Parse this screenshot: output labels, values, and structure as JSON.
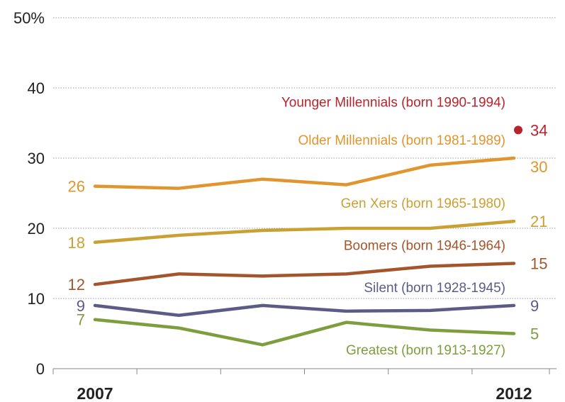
{
  "chart_data": {
    "type": "line",
    "title": "",
    "xlabel": "",
    "ylabel": "",
    "x": [
      2007,
      2008,
      2009,
      2010,
      2011,
      2012
    ],
    "x_tick_labels": [
      "2007",
      "2012"
    ],
    "y_tick_labels": [
      "0",
      "10",
      "20",
      "30",
      "40",
      "50%"
    ],
    "ylim": [
      0,
      50
    ],
    "grid": "horizontal dotted",
    "series": [
      {
        "name": "Older Millennials (born 1981-1989)",
        "color": "#e0952e",
        "values": [
          26,
          25.7,
          27,
          26.2,
          29,
          30
        ],
        "start_label": "26",
        "end_label": "30"
      },
      {
        "name": "Gen Xers (born 1965-1980)",
        "color": "#c9a133",
        "values": [
          18,
          19,
          19.7,
          20,
          20,
          21
        ],
        "start_label": "18",
        "end_label": "21"
      },
      {
        "name": "Boomers (born 1946-1964)",
        "color": "#a4552b",
        "values": [
          12,
          13.5,
          13.2,
          13.5,
          14.6,
          15
        ],
        "start_label": "12",
        "end_label": "15"
      },
      {
        "name": "Silent (born 1928-1945)",
        "color": "#5c5b86",
        "values": [
          9,
          7.6,
          9,
          8.2,
          8.3,
          9
        ],
        "start_label": "9",
        "end_label": "9"
      },
      {
        "name": "Greatest (born 1913-1927)",
        "color": "#7e9d3c",
        "values": [
          7,
          5.8,
          3.4,
          6.6,
          5.5,
          5
        ],
        "start_label": "7",
        "end_label": "5"
      },
      {
        "name": "Younger Millennials (born 1990-1994)",
        "color": "#b8242c",
        "values": [
          null,
          null,
          null,
          null,
          null,
          34
        ],
        "start_label": "",
        "end_label": "34"
      }
    ]
  }
}
